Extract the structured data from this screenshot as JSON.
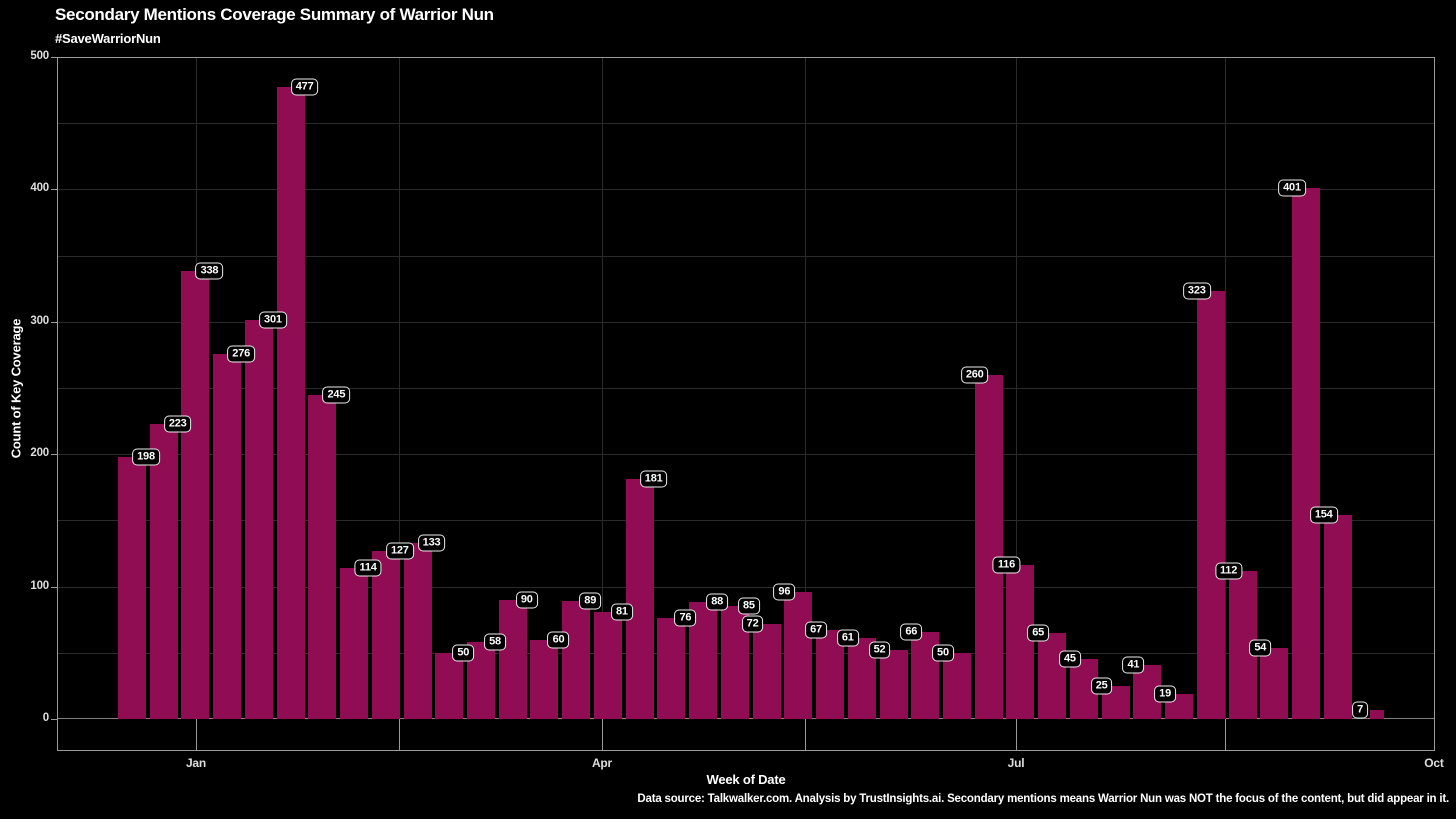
{
  "header": {
    "title": "Secondary Mentions Coverage Summary of Warrior Nun",
    "subtitle": "#SaveWarriorNun"
  },
  "caption": "Data source: Talkwalker.com. Analysis by TrustInsights.ai. Secondary mentions means Warrior Nun was NOT the focus of the content, but did appear in it.",
  "colors": {
    "background": "#000000",
    "bar": "#900D53",
    "gridline": "#2b2b2b",
    "frame": "#9a9a9a",
    "baseline": "#808080",
    "label_box_border": "#ededed",
    "tick_text": "#dedede"
  },
  "x_axis": {
    "label": "Week of Date",
    "tick_labels": [
      "Jan",
      "Apr",
      "Jul",
      "Oct"
    ]
  },
  "y_axis": {
    "label": "Count of Key Coverage",
    "tick_labels": [
      "0",
      "100",
      "200",
      "300",
      "400",
      "500"
    ]
  },
  "chart_data": {
    "type": "bar",
    "title": "Secondary Mentions Coverage Summary of Warrior Nun",
    "subtitle": "#SaveWarriorNun",
    "xlabel": "Week of Date",
    "ylabel": "Count of Key Coverage",
    "ylim": [
      0,
      500
    ],
    "y_major_ticks": [
      0,
      100,
      200,
      300,
      400,
      500
    ],
    "y_minor_grid_step": 50,
    "x_tick_labels": [
      "Jan",
      "Apr",
      "Jul",
      "Oct"
    ],
    "grid": true,
    "legend": "none",
    "bar_color": "#900D53",
    "values": [
      198,
      223,
      338,
      276,
      301,
      477,
      245,
      114,
      127,
      133,
      50,
      58,
      90,
      60,
      89,
      81,
      181,
      76,
      88,
      85,
      72,
      96,
      67,
      61,
      52,
      66,
      50,
      260,
      116,
      65,
      45,
      25,
      41,
      19,
      323,
      112,
      54,
      401,
      154,
      7
    ],
    "label_sides": [
      "right",
      "right",
      "right",
      "right",
      "right",
      "right",
      "right",
      "right",
      "right",
      "right",
      "right",
      "right",
      "right",
      "right",
      "right",
      "right",
      "right",
      "right",
      "right",
      "right",
      "left",
      "left",
      "left",
      "left",
      "left",
      "left",
      "left",
      "left",
      "left",
      "left",
      "left",
      "left",
      "left",
      "left",
      "left",
      "left",
      "left",
      "left",
      "left",
      "outside-left"
    ]
  }
}
